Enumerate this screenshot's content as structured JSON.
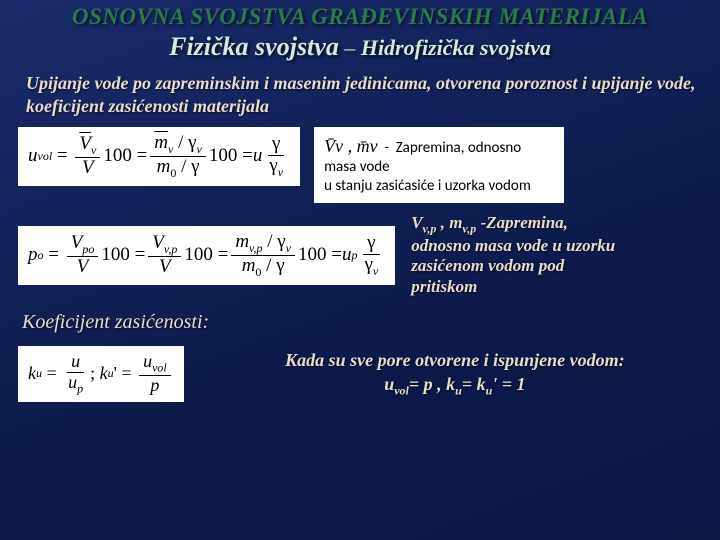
{
  "title_main": "OSNOVNA SVOJSTVA GRAĐEVINSKIH MATERIJALA",
  "title_sub_p1": "Fizička svojstva",
  "title_sub_dash": " – ",
  "title_sub_p2": "Hidrofizička svojstva",
  "intro": "Upijanje vode po zapreminskim i masenim jedinicama, otvorena poroznost i upijanje vode, koeficijent zasićenosti materijala",
  "note1_line1": "V̄ᵥ , m̄ᵥ -  Zapremina, odnosno masa vode",
  "note1_line2": "u stanju zasićasiće i uzorka vodom",
  "note2_sym": "Vᵥ,ₚ , mᵥ,ₚ",
  "note2_rest": " -Zapremina, odnosno masa vode u uzorku zasićenom vodom pod pritiskom",
  "coef_label": "Koeficijent zasićenosti:",
  "final_l1": "Kada su sve pore otvorene i ispunjene vodom:",
  "final_l2_a": "u",
  "final_l2_a_sub": "vol",
  "final_l2_b": "= p ,  k",
  "final_l2_b_sub": "u",
  "final_l2_c": "= k",
  "final_l2_c_sub": "u",
  "final_l2_d": "' = 1",
  "colors": {
    "bg_start": "#1a2b6b",
    "bg_end": "#0a1540",
    "title_green": "#2a7a4a",
    "text_cream": "#e8dcc8",
    "white": "#ffffff"
  },
  "typography": {
    "title_main_size": 23,
    "title_sub_size": 26,
    "body_size": 18,
    "eq_size": 19,
    "note_size": 15
  }
}
